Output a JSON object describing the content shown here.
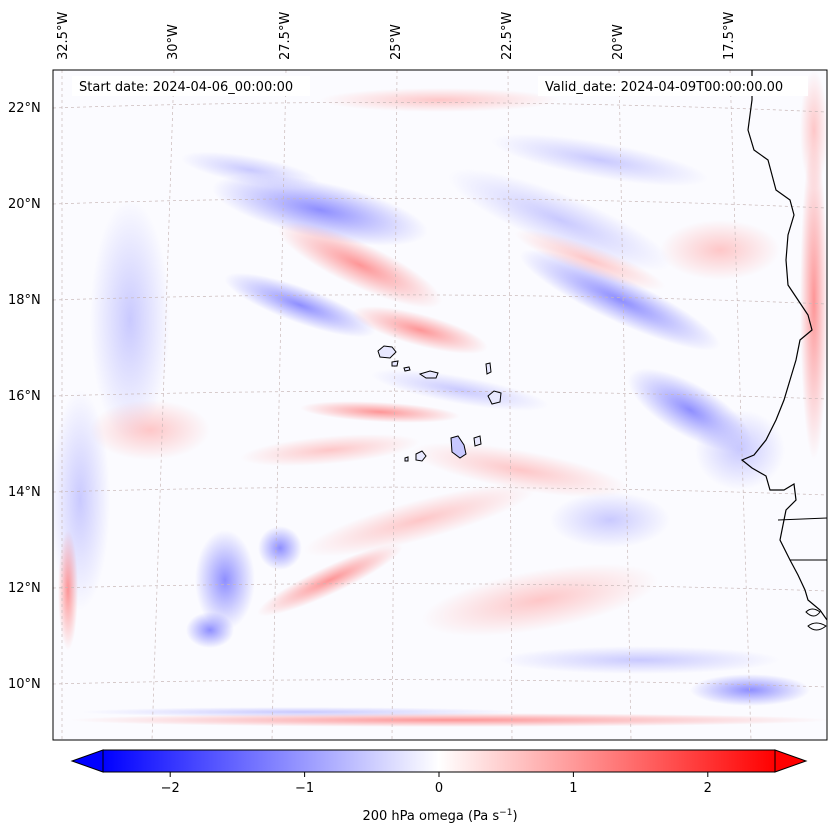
{
  "map": {
    "start_date_label": "Start date: 2024-04-06_00:00:00",
    "valid_date_label": "Valid_date: 2024-04-09T00:00:00.00",
    "lon_labels": [
      "32.5°W",
      "30°W",
      "27.5°W",
      "25°W",
      "22.5°W",
      "20°W",
      "17.5°W"
    ],
    "lat_labels": [
      "22°N",
      "20°N",
      "18°N",
      "16°N",
      "14°N",
      "12°N",
      "10°N"
    ],
    "colors": {
      "negative": "#0000ff",
      "neutral": "#ffffff",
      "positive": "#ff0000",
      "coastline": "#000000",
      "gridline": "#c8b8b8"
    }
  },
  "colorbar": {
    "ticks": [
      "−2",
      "−1",
      "0",
      "1",
      "2"
    ],
    "vmin": -2.5,
    "vmax": 2.5,
    "label_main": "200 hPa omega (Pa s",
    "label_sup": "−1",
    "label_end": ")"
  }
}
